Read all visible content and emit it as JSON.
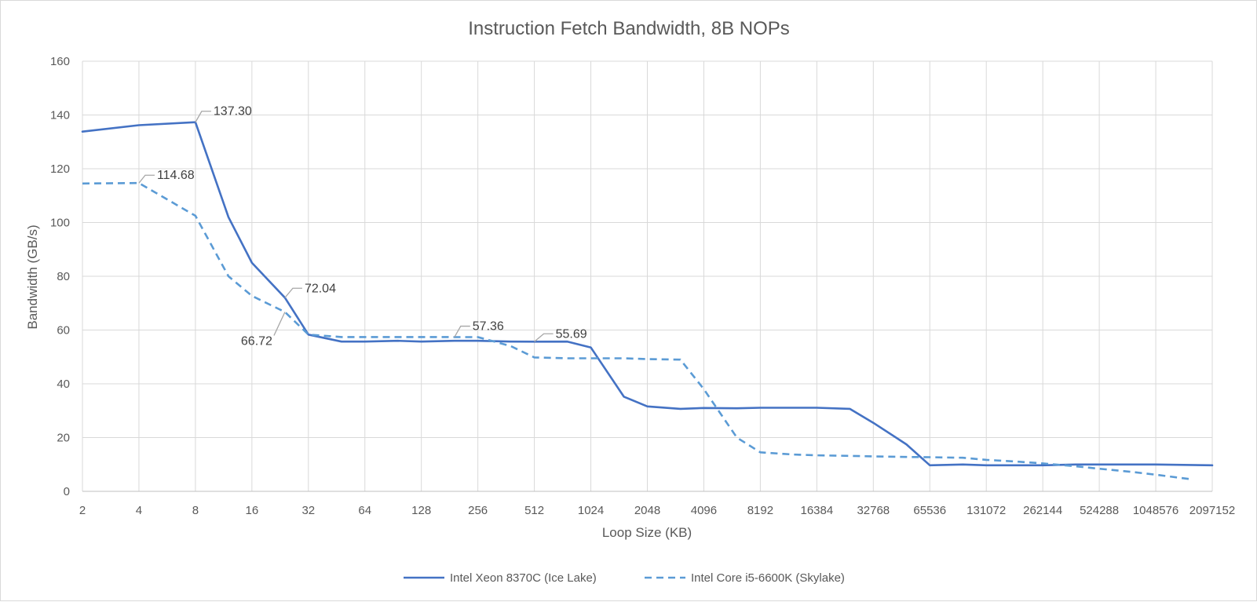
{
  "chart_data": {
    "type": "line",
    "title": "Instruction Fetch Bandwidth, 8B NOPs",
    "xlabel": "Loop Size (KB)",
    "ylabel": "Bandwidth (GB/s)",
    "x_scale": "log2",
    "categories": [
      "2",
      "4",
      "8",
      "16",
      "32",
      "64",
      "128",
      "256",
      "512",
      "1024",
      "2048",
      "4096",
      "8192",
      "16384",
      "32768",
      "65536",
      "131072",
      "262144",
      "524288",
      "1048576",
      "2097152"
    ],
    "ylim": [
      0,
      160
    ],
    "yticks": [
      0,
      20,
      40,
      60,
      80,
      100,
      120,
      140,
      160
    ],
    "grid": true,
    "legend_position": "bottom",
    "series": [
      {
        "name": "Intel Xeon 8370C (Ice Lake)",
        "color": "#4472c4",
        "style": "solid",
        "x": [
          2,
          4,
          8,
          12,
          16,
          24,
          32,
          48,
          64,
          96,
          128,
          192,
          256,
          384,
          512,
          768,
          1024,
          1536,
          2048,
          3072,
          4096,
          6144,
          8192,
          12288,
          16384,
          24576,
          32768,
          49152,
          65536,
          98304,
          131072,
          196608,
          262144,
          393216,
          524288,
          786432,
          1048576,
          2097152
        ],
        "y": [
          133.8,
          136.2,
          137.3,
          102.0,
          85.0,
          72.04,
          58.3,
          55.7,
          55.7,
          56.0,
          55.7,
          56.0,
          56.0,
          55.7,
          55.69,
          55.7,
          53.5,
          35.2,
          31.6,
          30.7,
          31.0,
          30.9,
          31.1,
          31.1,
          31.1,
          30.7,
          25.5,
          17.5,
          9.7,
          10.0,
          9.7,
          9.7,
          9.7,
          10.0,
          10.0,
          10.0,
          10.0,
          9.7
        ],
        "labels": [
          {
            "x": 8,
            "y": 137.3,
            "text": "137.30"
          },
          {
            "x": 24,
            "y": 72.04,
            "text": "72.04"
          },
          {
            "x": 512,
            "y": 55.69,
            "text": "55.69"
          }
        ]
      },
      {
        "name": "Intel Core i5-6600K (Skylake)",
        "color": "#5b9bd5",
        "style": "dashed",
        "x": [
          2,
          4,
          8,
          12,
          16,
          24,
          32,
          48,
          64,
          96,
          128,
          192,
          256,
          384,
          512,
          768,
          1024,
          1536,
          2048,
          3072,
          4096,
          6144,
          8192,
          12288,
          16384,
          24576,
          32768,
          49152,
          65536,
          98304,
          131072,
          196608,
          262144,
          393216,
          524288,
          786432,
          1048576,
          1572864
        ],
        "y": [
          114.5,
          114.68,
          102.5,
          80.0,
          72.7,
          66.72,
          58.3,
          57.4,
          57.4,
          57.4,
          57.4,
          57.36,
          57.36,
          54.0,
          49.8,
          49.5,
          49.5,
          49.5,
          49.2,
          49.0,
          38.0,
          20.0,
          14.5,
          13.7,
          13.4,
          13.2,
          13.0,
          12.8,
          12.7,
          12.5,
          11.7,
          11.0,
          10.4,
          9.3,
          8.4,
          7.2,
          6.2,
          4.6
        ],
        "labels": [
          {
            "x": 4,
            "y": 114.68,
            "text": "114.68"
          },
          {
            "x": 24,
            "y": 66.72,
            "text": "66.72"
          },
          {
            "x": 192,
            "y": 57.36,
            "text": "57.36"
          }
        ]
      }
    ]
  }
}
